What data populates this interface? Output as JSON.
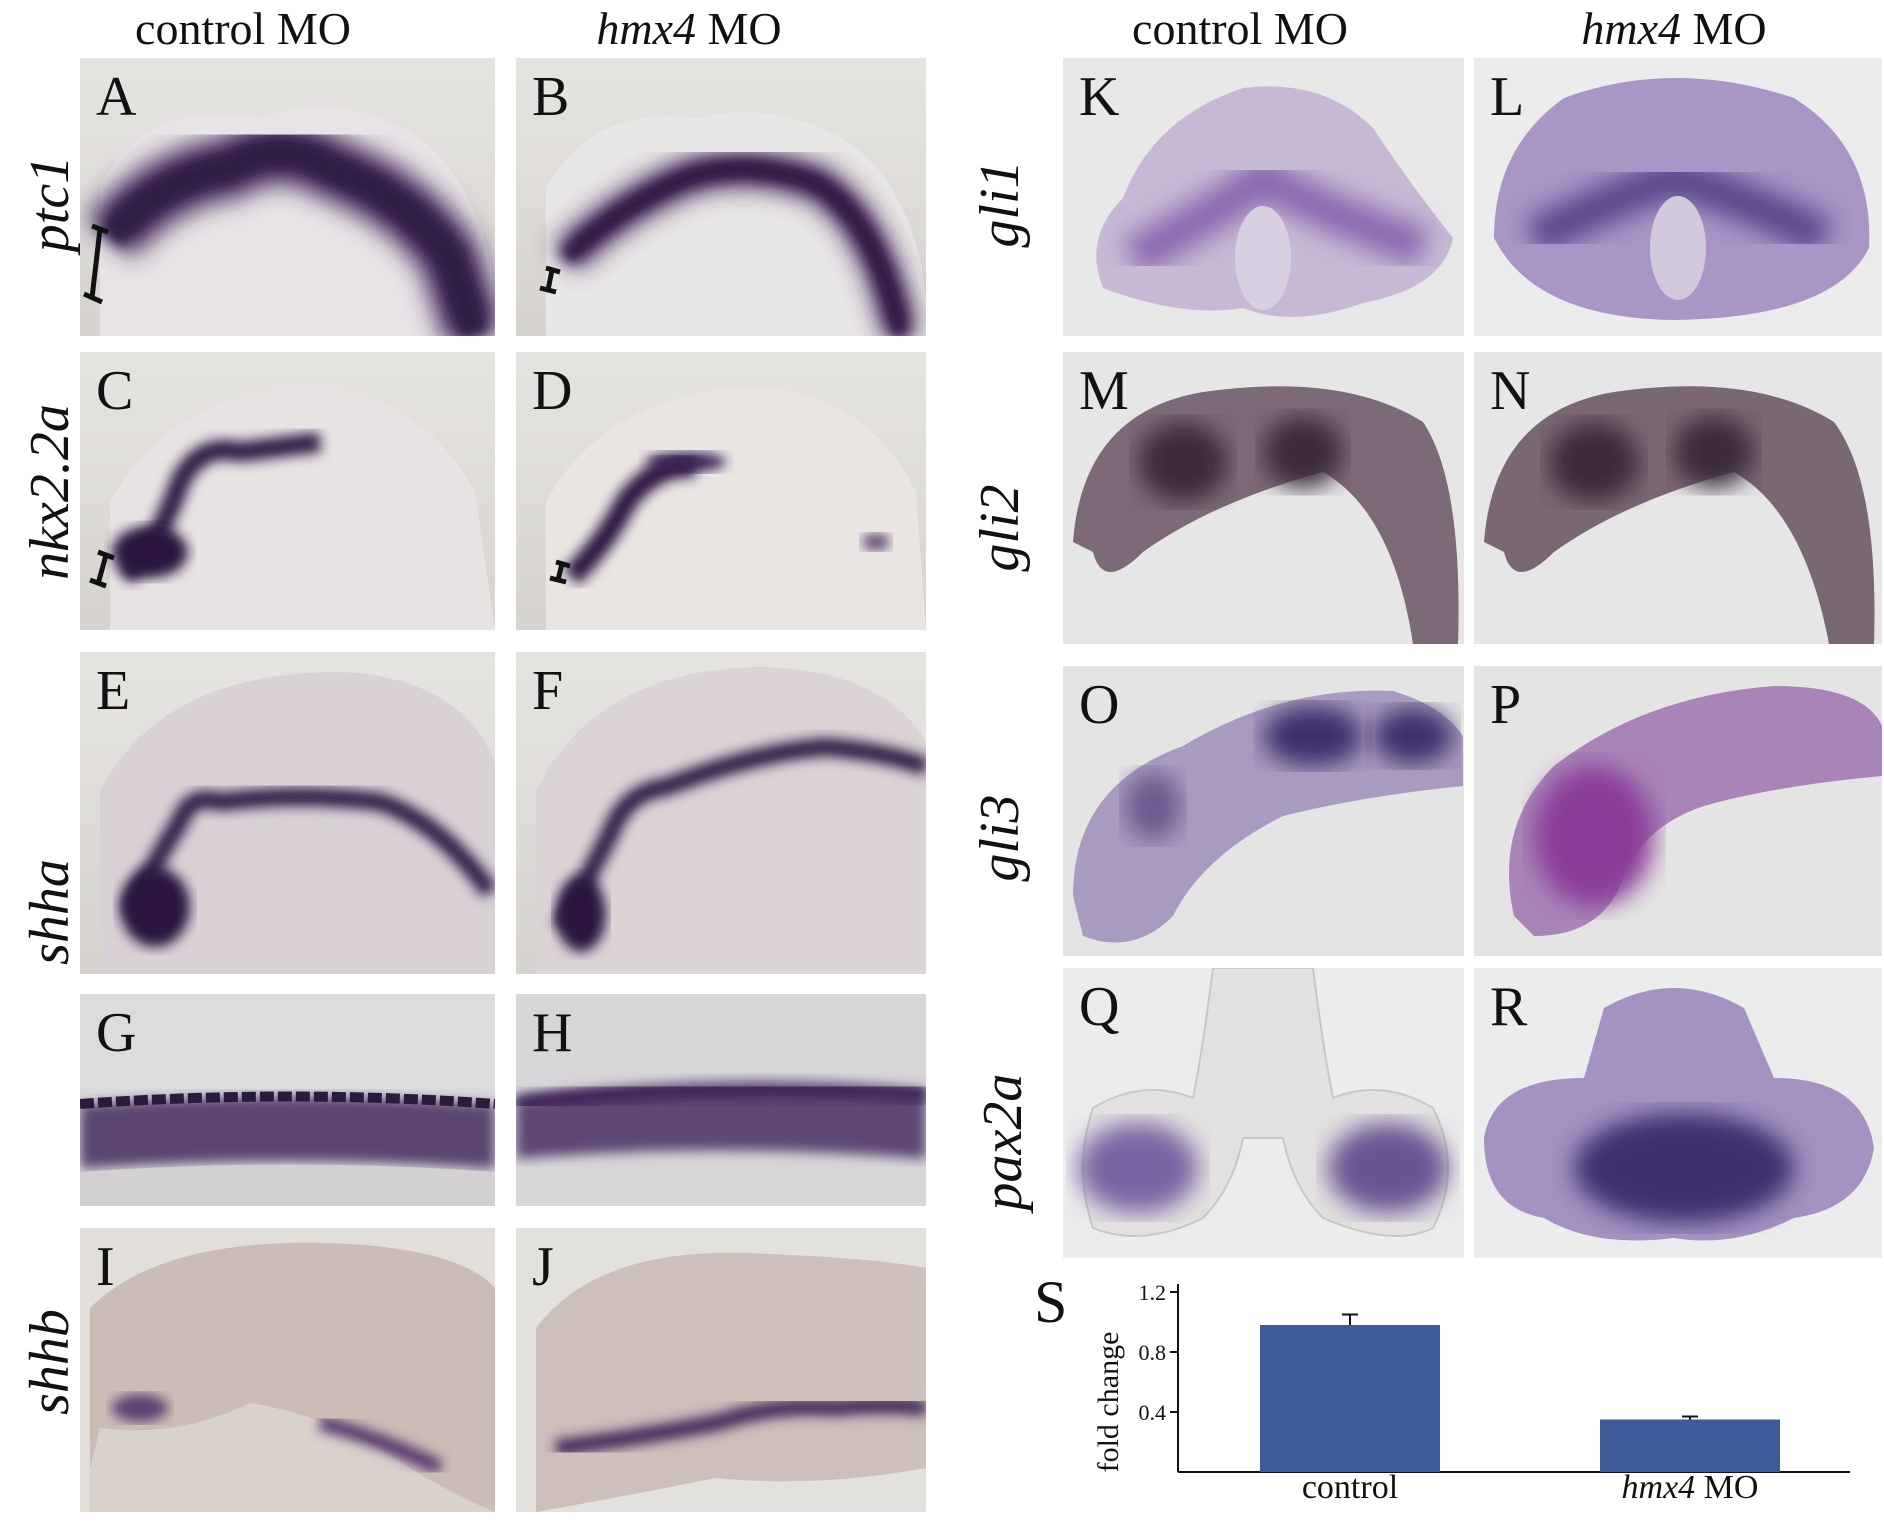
{
  "headers": {
    "col1": "control MO",
    "col2_gene": "hmx4",
    "col2_rest": " MO",
    "col3": "control MO",
    "col4_gene": "hmx4",
    "col4_rest": " MO"
  },
  "row_labels": {
    "ptc1": "ptc1",
    "nkx22a": "nkx2.2a",
    "shha": "shha",
    "shhb": "shhb",
    "gli1": "gli1",
    "gli2": "gli2",
    "gli3": "gli3",
    "pax2a": "pax2a"
  },
  "panels": {
    "A": "A",
    "B": "B",
    "C": "C",
    "D": "D",
    "E": "E",
    "F": "F",
    "G": "G",
    "H": "H",
    "I": "I",
    "J": "J",
    "K": "K",
    "L": "L",
    "M": "M",
    "N": "N",
    "O": "O",
    "P": "P",
    "Q": "Q",
    "R": "R",
    "S": "S"
  },
  "chart_data": {
    "type": "bar",
    "panel_label": "S",
    "categories": [
      "control",
      "hmx4 MO"
    ],
    "category_parts": [
      {
        "gene": "",
        "rest": "control"
      },
      {
        "gene": "hmx4",
        "rest": " MO"
      }
    ],
    "values": [
      0.98,
      0.35
    ],
    "errors": [
      0.07,
      0.02
    ],
    "ylabel": "fold change",
    "yticks": [
      0.4,
      0.8,
      1.2
    ],
    "ytick_labels": [
      "0.4",
      "0.8",
      "1.2"
    ],
    "ylim": [
      0,
      1.2
    ],
    "bar_color": "#3d5a99",
    "grid": false
  }
}
